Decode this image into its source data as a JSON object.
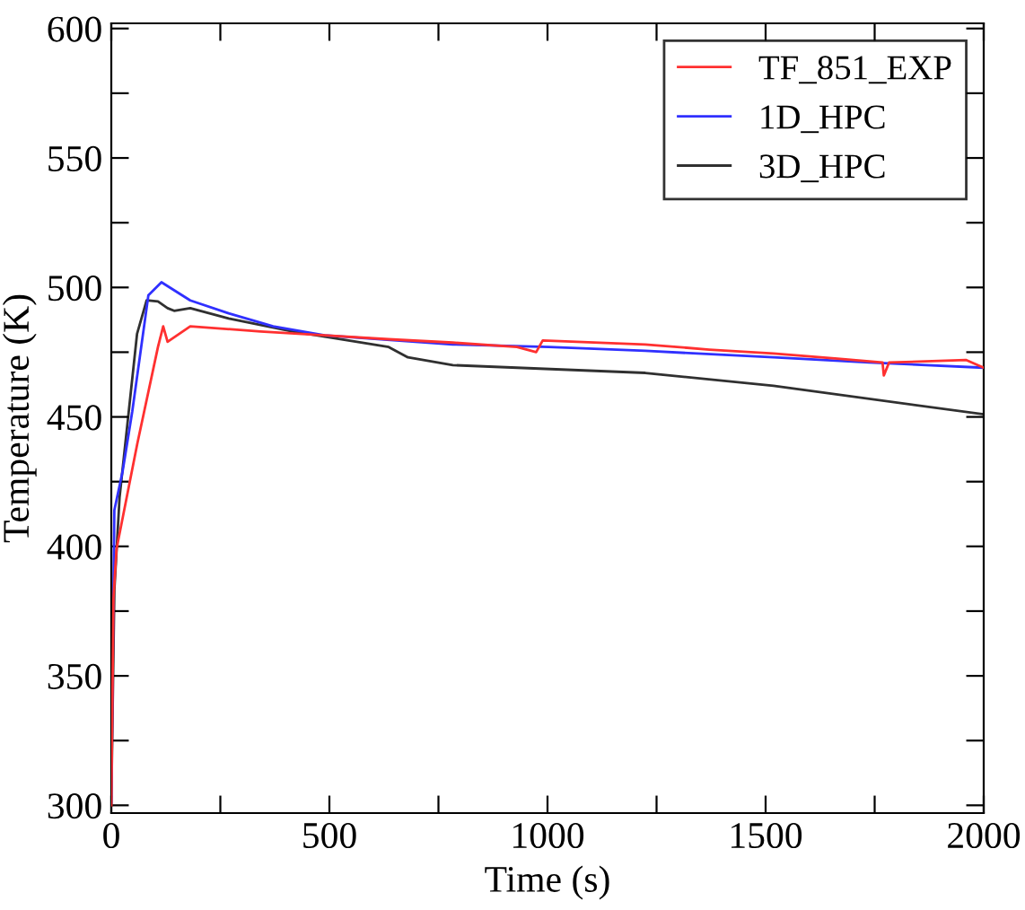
{
  "chart_data": {
    "type": "line",
    "xlabel": "Time (s)",
    "ylabel": "Temperature (K)",
    "xlim": [
      0,
      2000
    ],
    "ylim": [
      297,
      602
    ],
    "xticks": [
      0,
      {
        "value": 250,
        "label": null
      },
      500,
      {
        "value": 750,
        "label": null
      },
      1000,
      {
        "value": 1250,
        "label": null
      },
      1500,
      {
        "value": 1750,
        "label": null
      },
      2000
    ],
    "yticks": [
      300,
      {
        "value": 325,
        "label": null
      },
      350,
      {
        "value": 375,
        "label": null
      },
      400,
      {
        "value": 425,
        "label": null
      },
      450,
      {
        "value": 475,
        "label": null
      },
      500,
      {
        "value": 525,
        "label": null
      },
      550,
      {
        "value": 575,
        "label": null
      },
      600
    ],
    "grid": false,
    "legend": "top right",
    "marker": "none",
    "line_style": "solid",
    "series": [
      {
        "name": "TF_851_EXP",
        "color": "#ff3030",
        "x": [
          0,
          5,
          12,
          60,
          107,
          119,
          129,
          181,
          342,
          489,
          636,
          783,
          930,
          974,
          989,
          1224,
          1371,
          1518,
          1665,
          1768,
          1771,
          1783,
          1959,
          2000
        ],
        "values": [
          300,
          380,
          399,
          440,
          477,
          485,
          479,
          485,
          483,
          481.5,
          480,
          478.7,
          477,
          475,
          479.5,
          478,
          476,
          474.5,
          472.5,
          471,
          466,
          471,
          472,
          469
        ]
      },
      {
        "name": "1D_HPC",
        "color": "#3030ff",
        "x": [
          0,
          7,
          26,
          48,
          85,
          115,
          181,
          269,
          371,
          489,
          783,
          1003,
          1224,
          1518,
          1737,
          2000
        ],
        "values": [
          301,
          414,
          429,
          452,
          497,
          502,
          495,
          490,
          485,
          481.5,
          478,
          477,
          475.5,
          473,
          471,
          469
        ]
      },
      {
        "name": "3D_HPC",
        "color": "#303030",
        "x": [
          0,
          7,
          19,
          59,
          81,
          107,
          129,
          144,
          181,
          269,
          416,
          563,
          636,
          680,
          783,
          1224,
          1518,
          2000
        ],
        "values": [
          300,
          383,
          419,
          482,
          495,
          494.6,
          492,
          491,
          492,
          488,
          483,
          479,
          477,
          473,
          470,
          467,
          462,
          451
        ]
      }
    ]
  }
}
